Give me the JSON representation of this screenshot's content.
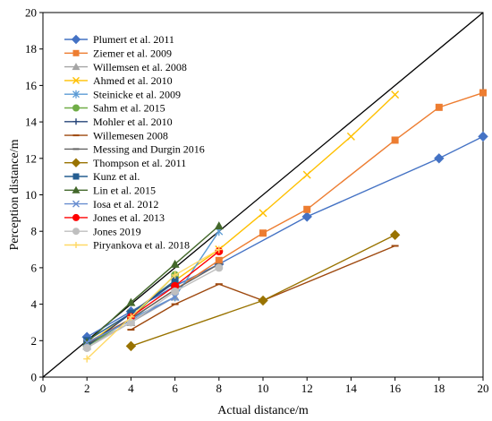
{
  "chart_data": {
    "type": "line",
    "xlabel": "Actual distance/m",
    "ylabel": "Perception distance/m",
    "xlim": [
      0,
      20
    ],
    "ylim": [
      0,
      20
    ],
    "xticks": [
      0,
      2,
      4,
      6,
      8,
      10,
      12,
      14,
      16,
      18,
      20
    ],
    "yticks": [
      0,
      2,
      4,
      6,
      8,
      10,
      12,
      14,
      16,
      18,
      20
    ],
    "reference_line": {
      "x": [
        0,
        20
      ],
      "y": [
        0,
        20
      ],
      "color": "#000000"
    },
    "legend_position": "top-left",
    "series": [
      {
        "name": "Plumert et al. 2011",
        "color": "#4472C4",
        "marker": "diamond",
        "x": [
          2,
          4,
          6,
          8,
          12,
          18,
          20
        ],
        "y": [
          2.2,
          3.6,
          5.0,
          6.2,
          8.8,
          12.0,
          13.2
        ]
      },
      {
        "name": "Ziemer et al. 2009",
        "color": "#ED7D31",
        "marker": "square",
        "x": [
          2,
          4,
          6,
          8,
          10,
          12,
          16,
          18,
          20
        ],
        "y": [
          1.9,
          3.2,
          4.8,
          6.4,
          7.9,
          9.2,
          13.0,
          14.8,
          15.6
        ]
      },
      {
        "name": "Willemsen et al. 2008",
        "color": "#A5A5A5",
        "marker": "triangle",
        "x": [
          2,
          4,
          6
        ],
        "y": [
          1.7,
          3.0,
          4.4
        ]
      },
      {
        "name": "Ahmed et al. 2010",
        "color": "#FFC000",
        "marker": "x",
        "x": [
          2,
          4,
          6,
          8,
          10,
          12,
          14,
          16
        ],
        "y": [
          1.8,
          3.5,
          5.3,
          7.0,
          9.0,
          11.1,
          13.2,
          15.5
        ]
      },
      {
        "name": "Steinicke et al. 2009",
        "color": "#5B9BD5",
        "marker": "star",
        "x": [
          2,
          4,
          6,
          8
        ],
        "y": [
          1.7,
          3.2,
          4.4,
          8.0
        ]
      },
      {
        "name": "Sahm et al. 2015",
        "color": "#70AD47",
        "marker": "circle",
        "x": [
          2,
          4,
          6
        ],
        "y": [
          1.7,
          3.2,
          5.6
        ]
      },
      {
        "name": "Mohler et al. 2010",
        "color": "#264478",
        "marker": "plus",
        "x": [
          2,
          4,
          6
        ],
        "y": [
          1.7,
          3.5,
          5.2
        ]
      },
      {
        "name": "Willemesen 2008",
        "color": "#9E480E",
        "marker": "dash",
        "x": [
          4,
          6,
          8,
          10,
          16
        ],
        "y": [
          2.6,
          4.0,
          5.1,
          4.2,
          7.2
        ]
      },
      {
        "name": "Messing and Durgin 2016",
        "color": "#636363",
        "marker": "dash",
        "x": [
          2,
          4,
          6,
          8
        ],
        "y": [
          1.8,
          3.2,
          4.8,
          6.2
        ]
      },
      {
        "name": "Thompson et al. 2011",
        "color": "#997300",
        "marker": "diamond",
        "x": [
          4,
          10,
          16
        ],
        "y": [
          1.7,
          4.2,
          7.8
        ]
      },
      {
        "name": "Kunz et al.",
        "color": "#255E91",
        "marker": "square",
        "x": [
          2,
          4,
          6
        ],
        "y": [
          2.0,
          3.5,
          5.3
        ]
      },
      {
        "name": "Lin et al. 2015",
        "color": "#43682B",
        "marker": "triangle",
        "x": [
          2,
          4,
          6,
          8
        ],
        "y": [
          1.9,
          4.1,
          6.2,
          8.3
        ]
      },
      {
        "name": "Iosa et al. 2012",
        "color": "#698ED0",
        "marker": "x",
        "x": [
          2,
          4,
          6
        ],
        "y": [
          1.9,
          3.1,
          4.4
        ]
      },
      {
        "name": "Jones et al. 2013",
        "color": "#FF0000",
        "marker": "circle",
        "x": [
          4,
          6,
          8
        ],
        "y": [
          3.3,
          5.0,
          6.9
        ]
      },
      {
        "name": "Jones 2019",
        "color": "#BFBFBF",
        "marker": "circle",
        "x": [
          2,
          4,
          6,
          8
        ],
        "y": [
          1.6,
          3.0,
          4.7,
          6.0
        ]
      },
      {
        "name": "Piryankova et al. 2018",
        "color": "#FFD966",
        "marker": "plus",
        "x": [
          2,
          4,
          6,
          8
        ],
        "y": [
          1.0,
          3.3,
          5.6,
          7.0
        ]
      }
    ]
  }
}
